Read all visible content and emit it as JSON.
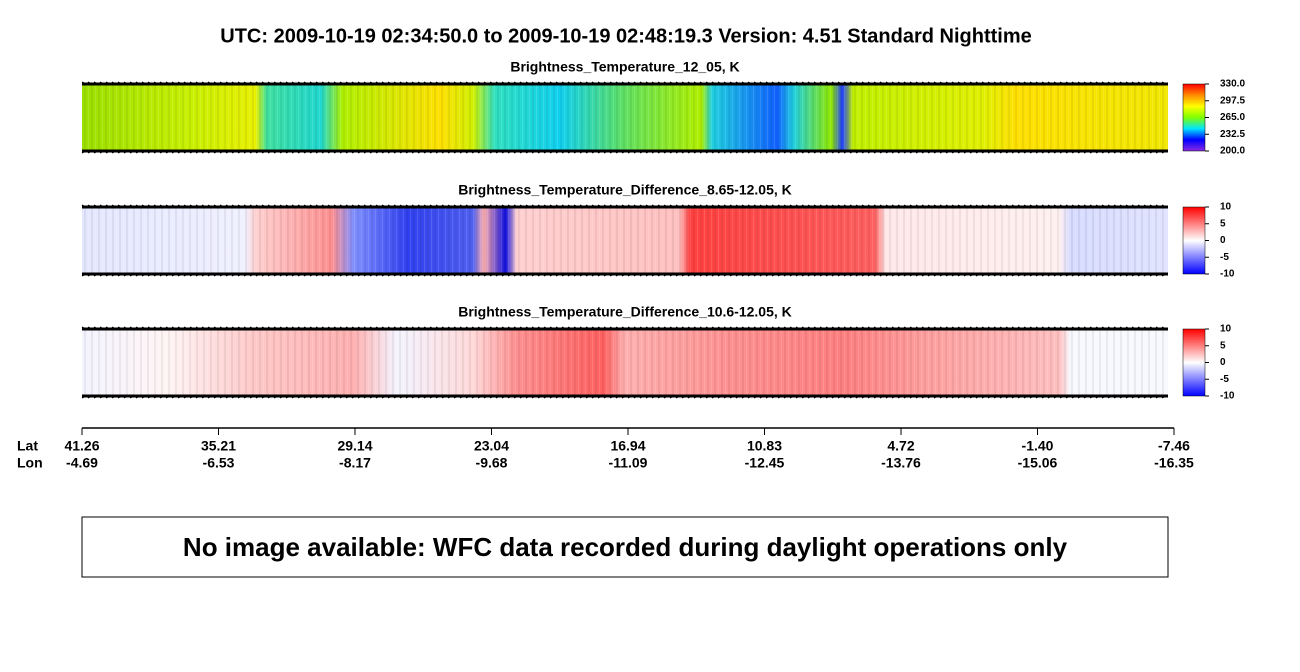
{
  "header": {
    "title": "UTC:  2009-10-19   02:34:50.0  to  2009-10-19   02:48:19.3    Version: 4.51  Standard Nighttime"
  },
  "panels": [
    {
      "title": "Brightness_Temperature_12_05, K",
      "clim": [
        200,
        330
      ],
      "colorbar_colors": [
        "#8a2be2",
        "#0000ff",
        "#00e5ff",
        "#7fff00",
        "#ffff00",
        "#ff8c00",
        "#ff0000"
      ],
      "ticks": [
        {
          "value": 330,
          "label": "330.0"
        },
        {
          "value": 297.5,
          "label": "297.5"
        },
        {
          "value": 265,
          "label": "265.0"
        },
        {
          "value": 232.5,
          "label": "232.5"
        },
        {
          "value": 200,
          "label": "200.0"
        }
      ]
    },
    {
      "title": "Brightness_Temperature_Difference_8.65-12.05, K",
      "clim": [
        -10,
        10
      ],
      "colorbar_colors": [
        "#0000ff",
        "#8080ff",
        "#ffffff",
        "#ff8080",
        "#ff0000"
      ],
      "ticks": [
        10,
        5,
        0,
        -5,
        -10
      ]
    },
    {
      "title": "Brightness_Temperature_Difference_10.6-12.05, K",
      "clim": [
        -10,
        10
      ],
      "colorbar_colors": [
        "#0000ff",
        "#8080ff",
        "#ffffff",
        "#ff8080",
        "#ff0000"
      ],
      "ticks": [
        10,
        5,
        0,
        -5,
        -10
      ]
    }
  ],
  "track": {
    "lat_label": "Lat",
    "lon_label": "Lon",
    "lat": [
      "41.26",
      "35.21",
      "29.14",
      "23.04",
      "16.94",
      "10.83",
      "4.72",
      "-1.40",
      "-7.46"
    ],
    "lon": [
      "-4.69",
      "-6.53",
      "-8.17",
      "-9.68",
      "-11.09",
      "-12.45",
      "-13.76",
      "-15.06",
      "-16.35"
    ]
  },
  "message": "No image available: WFC data recorded during daylight operations only"
}
